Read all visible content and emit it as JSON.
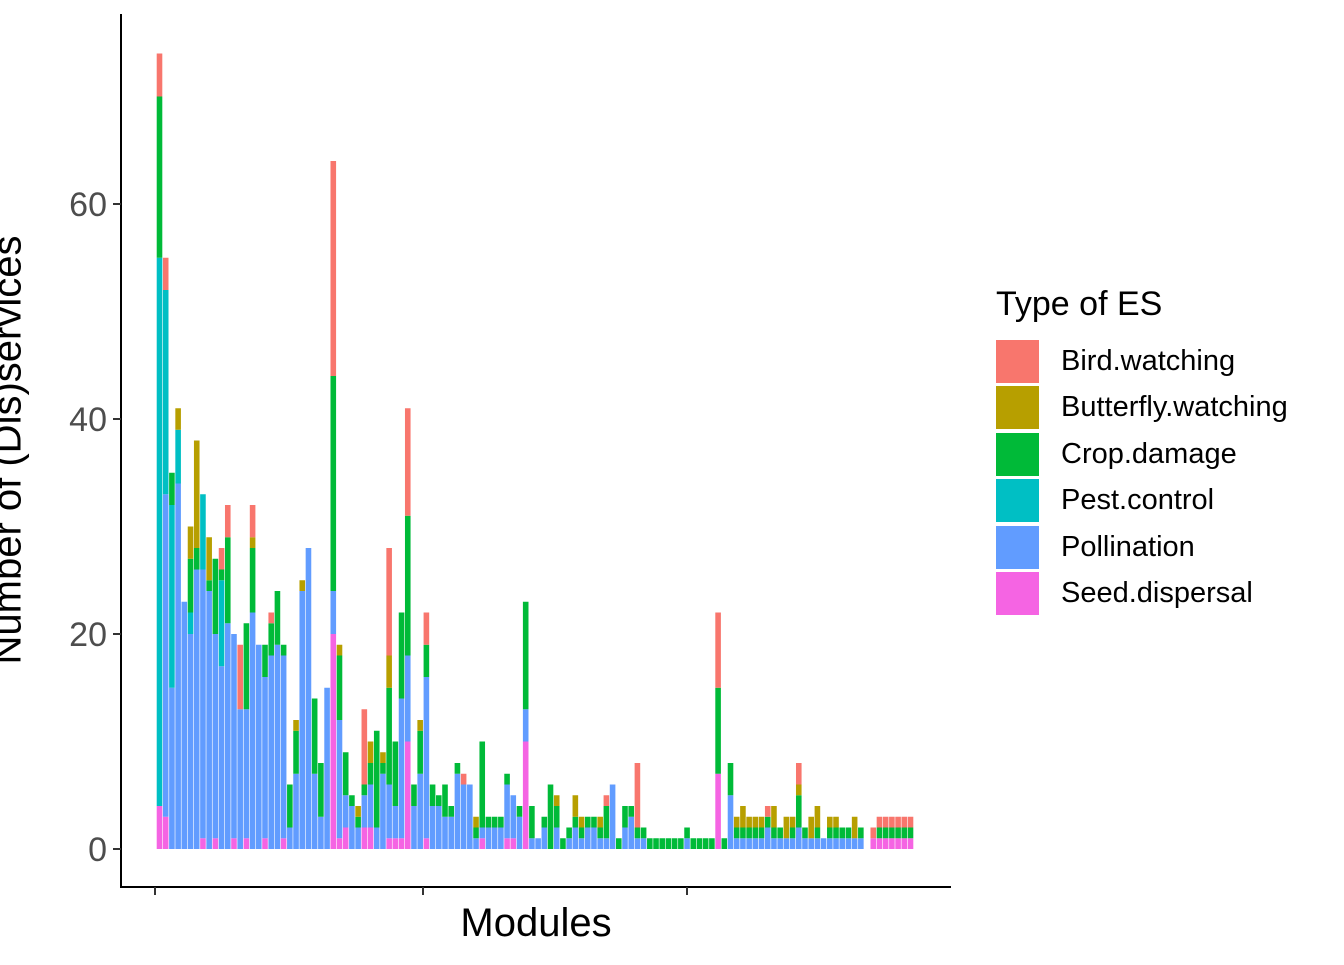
{
  "chart_data": {
    "type": "bar",
    "stacked": true,
    "xlabel": "Modules",
    "ylabel": "Number of (Dis)services",
    "ylim": [
      -4,
      77
    ],
    "yticks": [
      0,
      20,
      40,
      60
    ],
    "ytick_labels": [
      "0",
      "20",
      "40",
      "60"
    ],
    "grid": false,
    "legend": {
      "title": "Type of ES",
      "placement": "right"
    },
    "series": [
      {
        "name": "Seed.dispersal",
        "color": "#F564E3",
        "values": [
          4,
          3,
          0,
          0,
          0,
          0,
          0,
          1,
          0,
          1,
          0,
          0,
          1,
          0,
          1,
          0,
          0,
          1,
          0,
          0,
          1,
          0,
          0,
          0,
          0,
          0,
          0,
          0,
          20,
          1,
          2,
          0,
          0,
          2,
          2,
          0,
          0,
          1,
          1,
          1,
          10,
          0,
          0,
          1,
          0,
          0,
          0,
          0,
          0,
          0,
          0,
          0,
          1,
          0,
          0,
          0,
          1,
          1,
          0,
          10,
          0,
          0,
          0,
          0,
          0,
          0,
          0,
          0,
          0,
          0,
          0,
          0,
          0,
          0,
          0,
          0,
          0,
          0,
          0,
          0,
          0,
          0,
          0,
          0,
          0,
          0,
          0,
          0,
          0,
          0,
          7,
          0,
          0,
          0,
          0,
          0,
          0,
          0,
          0,
          0,
          0,
          0,
          0,
          0,
          0,
          0,
          0,
          0,
          0,
          0,
          0,
          0,
          0,
          0,
          0,
          1,
          1,
          1,
          1,
          1,
          1,
          1
        ]
      },
      {
        "name": "Pollination",
        "color": "#619CFF",
        "values": [
          0,
          30,
          15,
          34,
          23,
          20,
          26,
          25,
          24,
          19,
          17,
          21,
          19,
          13,
          12,
          22,
          19,
          15,
          18,
          19,
          17,
          2,
          7,
          24,
          28,
          7,
          3,
          15,
          4,
          11,
          3,
          4,
          2,
          3,
          4,
          2,
          7,
          5,
          3,
          13,
          8,
          4,
          7,
          15,
          4,
          4,
          3,
          3,
          7,
          6,
          6,
          1,
          1,
          2,
          2,
          2,
          5,
          4,
          3,
          3,
          1,
          1,
          2,
          0,
          2,
          0,
          1,
          2,
          1,
          2,
          2,
          1,
          1,
          6,
          0,
          2,
          3,
          1,
          1,
          0,
          0,
          0,
          0,
          0,
          0,
          1,
          0,
          0,
          0,
          0,
          0,
          0,
          5,
          1,
          1,
          1,
          1,
          1,
          2,
          1,
          1,
          1,
          1,
          2,
          1,
          1,
          1,
          1,
          1,
          1,
          1,
          1,
          1,
          1,
          0,
          0,
          0,
          0,
          0,
          0,
          0,
          0,
          0
        ]
      },
      {
        "name": "Pest.control",
        "color": "#00BFC4",
        "values": [
          51,
          19,
          17,
          5,
          0,
          2,
          0,
          7,
          0,
          0,
          8,
          0,
          0,
          0,
          0,
          0,
          0,
          0,
          0,
          0,
          0,
          0,
          0,
          0,
          0,
          0,
          0,
          0,
          0,
          0,
          0,
          0,
          0,
          0,
          0,
          0,
          0,
          0,
          0,
          0,
          0,
          0,
          0,
          0,
          0,
          0,
          0,
          0,
          0,
          0,
          0,
          0,
          0,
          0,
          0,
          0,
          0,
          0,
          0,
          0,
          0,
          0,
          0,
          0,
          0,
          0,
          0,
          0,
          0,
          0,
          0,
          0,
          0,
          0,
          0,
          0,
          0,
          0,
          0,
          0,
          0,
          0,
          0,
          0,
          0,
          0,
          0,
          0,
          0,
          0,
          0,
          0,
          0,
          0,
          0,
          0,
          0,
          0,
          0,
          0,
          0,
          0,
          0,
          0,
          0,
          0,
          0,
          0,
          0,
          0,
          0,
          0,
          0,
          0,
          0,
          0,
          0,
          0,
          0,
          0,
          0,
          0,
          0
        ]
      },
      {
        "name": "Crop.damage",
        "color": "#00BA38",
        "values": [
          15,
          0,
          3,
          0,
          0,
          5,
          2,
          0,
          1,
          7,
          1,
          8,
          0,
          0,
          8,
          6,
          0,
          3,
          3,
          5,
          1,
          4,
          4,
          0,
          0,
          7,
          5,
          0,
          20,
          6,
          4,
          1,
          1,
          1,
          2,
          9,
          1,
          9,
          6,
          8,
          13,
          2,
          4,
          3,
          2,
          1,
          3,
          1,
          1,
          0,
          0,
          1,
          8,
          1,
          1,
          1,
          1,
          0,
          1,
          10,
          3,
          0,
          1,
          6,
          2,
          1,
          1,
          1,
          1,
          1,
          1,
          1,
          3,
          0,
          1,
          2,
          1,
          1,
          1,
          1,
          1,
          1,
          1,
          1,
          1,
          1,
          1,
          1,
          1,
          1,
          8,
          1,
          3,
          1,
          1,
          1,
          1,
          1,
          1,
          1,
          1,
          0,
          1,
          3,
          1,
          0,
          1,
          0,
          1,
          1,
          1,
          1,
          0,
          1,
          0,
          0,
          1,
          1,
          1,
          1,
          1,
          1,
          1
        ]
      },
      {
        "name": "Butterfly.watching",
        "color": "#B79F00",
        "values": [
          0,
          0,
          0,
          2,
          0,
          3,
          10,
          0,
          4,
          0,
          0,
          0,
          0,
          0,
          0,
          1,
          0,
          0,
          0,
          0,
          0,
          0,
          1,
          1,
          0,
          0,
          0,
          0,
          0,
          1,
          0,
          0,
          1,
          0,
          2,
          0,
          1,
          3,
          0,
          0,
          0,
          0,
          1,
          0,
          0,
          0,
          0,
          0,
          0,
          0,
          0,
          1,
          0,
          0,
          0,
          0,
          0,
          0,
          0,
          0,
          0,
          0,
          0,
          0,
          1,
          0,
          0,
          2,
          1,
          0,
          0,
          1,
          0,
          0,
          0,
          0,
          0,
          0,
          0,
          0,
          0,
          0,
          0,
          0,
          0,
          0,
          0,
          0,
          0,
          0,
          0,
          0,
          0,
          1,
          2,
          1,
          1,
          1,
          0,
          2,
          0,
          2,
          1,
          1,
          0,
          2,
          2,
          0,
          1,
          1,
          0,
          0,
          2,
          0,
          0,
          0,
          0,
          0,
          0,
          0,
          0,
          0
        ]
      },
      {
        "name": "Bird.watching",
        "color": "#F8766D",
        "values": [
          4,
          3,
          0,
          0,
          0,
          0,
          0,
          0,
          0,
          0,
          2,
          3,
          0,
          6,
          0,
          3,
          0,
          0,
          1,
          0,
          0,
          0,
          0,
          0,
          0,
          0,
          0,
          0,
          20,
          0,
          0,
          0,
          0,
          7,
          0,
          0,
          0,
          10,
          0,
          0,
          10,
          0,
          0,
          3,
          0,
          0,
          0,
          0,
          0,
          1,
          0,
          0,
          0,
          0,
          0,
          0,
          0,
          0,
          0,
          0,
          0,
          0,
          0,
          0,
          0,
          0,
          0,
          0,
          0,
          0,
          0,
          0,
          1,
          0,
          0,
          0,
          0,
          6,
          0,
          0,
          0,
          0,
          0,
          0,
          0,
          0,
          0,
          0,
          0,
          0,
          7,
          0,
          0,
          0,
          0,
          0,
          0,
          0,
          1,
          0,
          0,
          0,
          0,
          2,
          0,
          0,
          0,
          0,
          0,
          0,
          0,
          0,
          0,
          0,
          0,
          1,
          1,
          1,
          1,
          1,
          1,
          1
        ]
      }
    ]
  }
}
